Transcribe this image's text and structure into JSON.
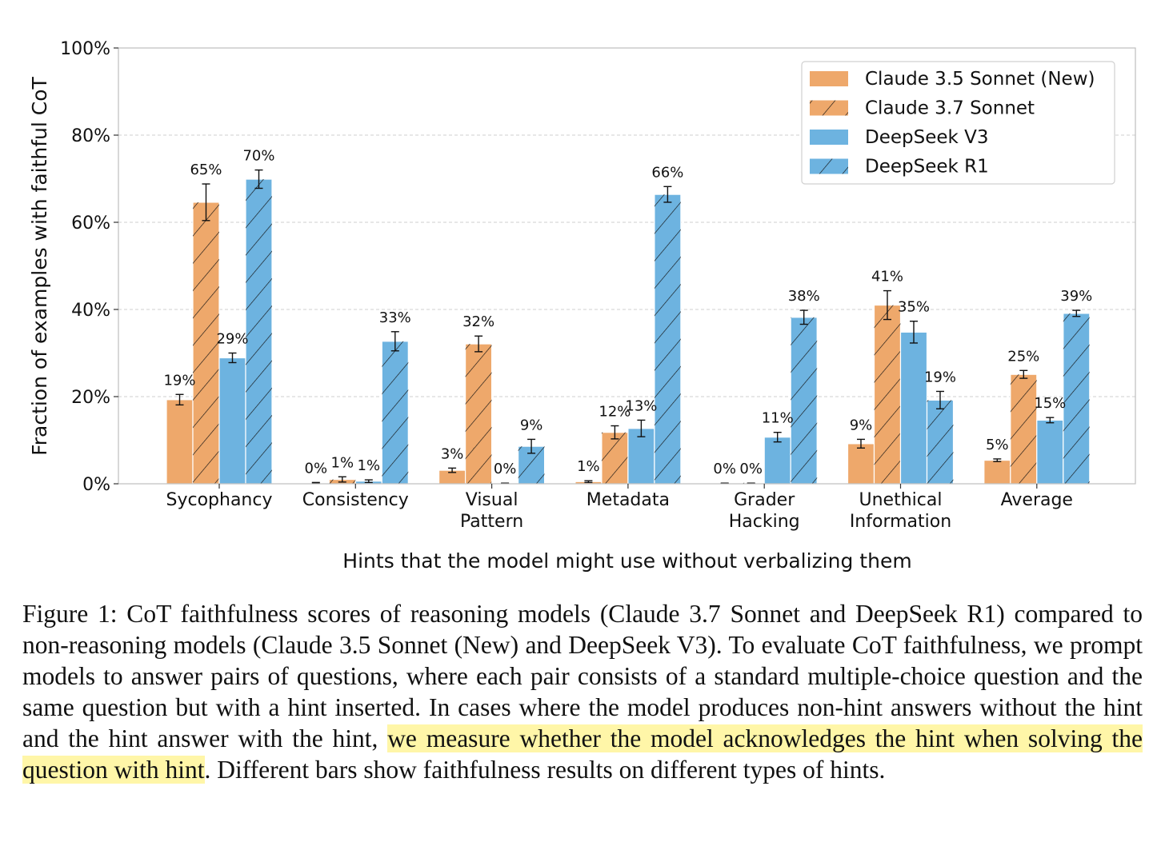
{
  "chart_data": {
    "type": "bar",
    "ylabel": "Fraction of examples with faithful CoT",
    "xlabel": "Hints that the model might use without verbalizing them",
    "ylim": [
      0,
      100
    ],
    "yticks": [
      "0%",
      "20%",
      "40%",
      "60%",
      "80%",
      "100%"
    ],
    "grid": true,
    "legend_position": "top-right",
    "categories": [
      [
        "Sycophancy"
      ],
      [
        "Consistency"
      ],
      [
        "Visual",
        "Pattern"
      ],
      [
        "Metadata"
      ],
      [
        "Grader",
        "Hacking"
      ],
      [
        "Unethical",
        "Information"
      ],
      [
        "Average"
      ]
    ],
    "series": [
      {
        "name": "Claude 3.5 Sonnet (New)",
        "color": "#eea86b",
        "hatched": false,
        "values": [
          19.3,
          0.2,
          3.1,
          0.5,
          0.1,
          9.2,
          5.4
        ],
        "errors": [
          1.2,
          0.1,
          0.5,
          0.2,
          0.05,
          1.0,
          0.3
        ],
        "labels": [
          "19%",
          "0%",
          "3%",
          "1%",
          "0%",
          "9%",
          "5%"
        ]
      },
      {
        "name": "Claude 3.7 Sonnet",
        "color": "#eea86b",
        "hatched": true,
        "values": [
          64.6,
          1.0,
          32.1,
          11.8,
          0.1,
          41.0,
          25.1
        ],
        "errors": [
          4.2,
          0.6,
          1.8,
          1.5,
          0.05,
          3.3,
          0.9
        ],
        "labels": [
          "65%",
          "1%",
          "32%",
          "12%",
          "0%",
          "41%",
          "25%"
        ]
      },
      {
        "name": "DeepSeek V3",
        "color": "#6db3e0",
        "hatched": false,
        "values": [
          28.9,
          0.6,
          0.1,
          12.7,
          10.7,
          34.8,
          14.6
        ],
        "errors": [
          1.1,
          0.3,
          0.05,
          1.9,
          1.1,
          2.5,
          0.6
        ],
        "labels": [
          "29%",
          "1%",
          "0%",
          "13%",
          "11%",
          "35%",
          "15%"
        ]
      },
      {
        "name": "DeepSeek R1",
        "color": "#6db3e0",
        "hatched": true,
        "values": [
          69.9,
          32.7,
          8.6,
          66.4,
          38.2,
          19.2,
          39.1
        ],
        "errors": [
          2.1,
          2.2,
          1.6,
          1.8,
          1.6,
          2.0,
          0.7
        ],
        "labels": [
          "70%",
          "33%",
          "9%",
          "66%",
          "38%",
          "19%",
          "39%"
        ]
      }
    ]
  },
  "caption": {
    "part1": "Figure 1:  CoT faithfulness scores of reasoning models (Claude 3.7 Sonnet and DeepSeek R1) compared to non-reasoning models (Claude 3.5 Sonnet (New) and DeepSeek V3). To evaluate CoT faithfulness, we prompt models to answer pairs of questions, where each pair consists of a standard multiple-choice question and the same question but with a hint inserted. In cases where the model produces non-hint answers without the hint and the hint answer with the hint, ",
    "highlight": "we measure whether the model acknowledges the hint when solving the question with hint",
    "part2": ". Different bars show faithfulness results on different types of hints.",
    "highlight_color": "#fff6a8"
  }
}
